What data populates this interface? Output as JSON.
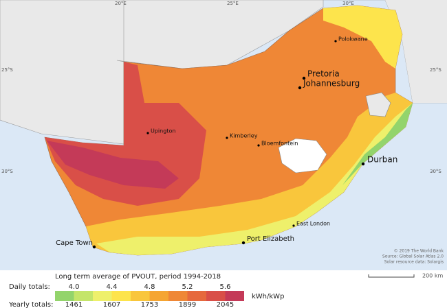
{
  "map": {
    "coordinates": [
      {
        "label": "20°E"
      },
      {
        "label": "25°E"
      },
      {
        "label": "30°E"
      },
      {
        "label": "25°S"
      },
      {
        "label": "25°S"
      },
      {
        "label": "30°S"
      },
      {
        "label": "30°S"
      }
    ],
    "cities": [
      {
        "label": "Polokwane"
      },
      {
        "label": "Pretoria"
      },
      {
        "label": "Johannesburg"
      },
      {
        "label": "Upington"
      },
      {
        "label": "Kimberley"
      },
      {
        "label": "Bloemfontein"
      },
      {
        "label": "Durban"
      },
      {
        "label": "East London"
      },
      {
        "label": "Port Elizabeth"
      },
      {
        "label": "Cape Town"
      }
    ],
    "credits": [
      "© 2019 The World Bank",
      "Source: Global Solar Atlas 2.0",
      "Solar resource data: Solargis"
    ],
    "scale": "200 km"
  },
  "legend": {
    "title": "Long term average of PVOUT, period 1994-2018",
    "daily_label": "Daily totals:",
    "daily": [
      "4.0",
      "4.4",
      "4.8",
      "5.2",
      "5.6"
    ],
    "yearly_label": "Yearly totals:",
    "yearly": [
      "1461",
      "1607",
      "1753",
      "1899",
      "2045"
    ],
    "unit": "kWh/kWp",
    "colors": [
      "#93d46c",
      "#c4e56a",
      "#eef06b",
      "#fde44c",
      "#f9c63c",
      "#f5a532",
      "#ef8736",
      "#e6693d",
      "#d94f48",
      "#c43a58"
    ]
  }
}
